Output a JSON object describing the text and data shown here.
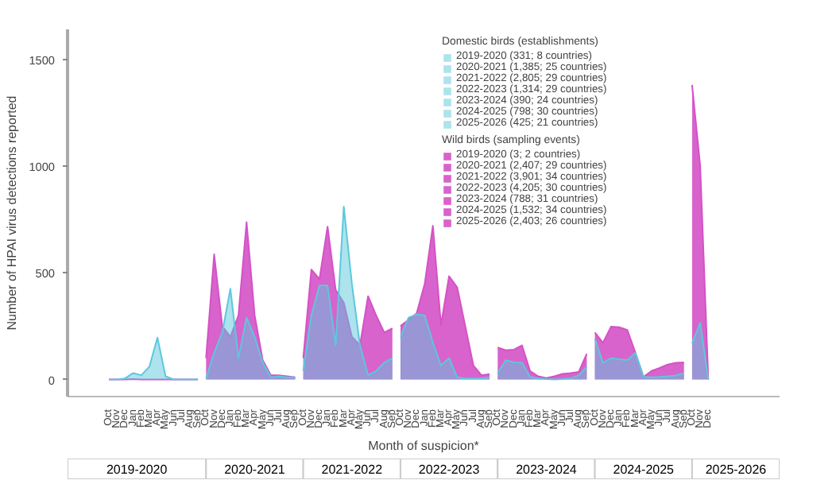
{
  "chart_data": {
    "type": "area",
    "xlabel": "Month of suspicion*",
    "ylabel": "Number of HPAI virus detections reported",
    "legend_title": "Domestic birds (establishments)",
    "legend": "top",
    "annotations": [
      "Wild birds (sampling events)",
      "2019-2020",
      "2020-2021",
      "2021-2022",
      "2022-2023",
      "2023-2024",
      "2024-2025",
      "2025-2026"
    ],
    "categories": [
      "Oct",
      "Nov",
      "Dec",
      "Jan",
      "Feb",
      "Mar",
      "Apr",
      "May",
      "Jun",
      "Jul",
      "Aug",
      "Sep",
      "Oct",
      "Nov",
      "Dec",
      "Jan",
      "Feb",
      "Mar",
      "Apr",
      "May",
      "Jun",
      "Jul",
      "Aug",
      "Sep",
      "Oct",
      "Nov",
      "Dec",
      "Jan",
      "Feb",
      "Mar",
      "Apr",
      "May",
      "Jun",
      "Jul",
      "Aug",
      "Sep",
      "Oct",
      "Nov",
      "Dec",
      "Jan",
      "Feb",
      "Mar",
      "Apr",
      "May",
      "Jun",
      "Jul",
      "Aug",
      "Sep",
      "Oct",
      "Nov",
      "Dec",
      "Jan",
      "Feb",
      "Mar",
      "Apr",
      "May",
      "Jun",
      "Jul",
      "Aug",
      "Sep",
      "Oct",
      "Nov",
      "Dec",
      "Jan",
      "Feb",
      "Mar",
      "Apr",
      "May",
      "Jun",
      "Jul",
      "Aug",
      "Sep",
      "Oct",
      "Nov",
      "Dec"
    ],
    "ylim": [
      -80,
      1640
    ],
    "yticks": [
      0,
      500,
      1000,
      1500
    ],
    "series": [
      {
        "name": "2019-2020 (331; 8 countries)",
        "color": "#5cc8dc",
        "values": [
          0,
          0,
          5,
          30,
          20,
          60,
          196,
          15,
          0,
          0,
          0,
          0,
          null,
          null,
          null,
          null,
          null,
          null,
          null,
          null,
          null,
          null,
          null,
          null,
          null,
          null,
          null,
          null,
          null,
          null,
          null,
          null,
          null,
          null,
          null,
          null,
          null,
          null,
          null,
          null,
          null,
          null,
          null,
          null,
          null,
          null,
          null,
          null,
          null,
          null,
          null,
          null,
          null,
          null,
          null,
          null,
          null,
          null,
          null,
          null,
          null,
          null,
          null,
          null,
          null,
          null,
          null,
          null,
          null,
          null,
          null,
          null,
          null,
          null,
          null
        ]
      },
      {
        "name": "2020-2021 (1,385; 25 countries)",
        "color": "#5cc8dc",
        "values": [
          null,
          null,
          null,
          null,
          null,
          null,
          null,
          null,
          null,
          null,
          null,
          null,
          5,
          125,
          220,
          425,
          100,
          290,
          200,
          80,
          10,
          15,
          10,
          10,
          null,
          null,
          null,
          null,
          null,
          null,
          null,
          null,
          null,
          null,
          null,
          null,
          null,
          null,
          null,
          null,
          null,
          null,
          null,
          null,
          null,
          null,
          null,
          null,
          null,
          null,
          null,
          null,
          null,
          null,
          null,
          null,
          null,
          null,
          null,
          null,
          null,
          null,
          null,
          null,
          null,
          null,
          null,
          null,
          null,
          null,
          null,
          null,
          null,
          null,
          null
        ]
      },
      {
        "name": "2021-2022 (2,805; 29 countries)",
        "color": "#5cc8dc",
        "values": [
          null,
          null,
          null,
          null,
          null,
          null,
          null,
          null,
          null,
          null,
          null,
          null,
          null,
          null,
          null,
          null,
          null,
          null,
          null,
          null,
          null,
          null,
          null,
          null,
          40,
          300,
          440,
          440,
          160,
          810,
          450,
          160,
          20,
          40,
          80,
          100,
          null,
          null,
          null,
          null,
          null,
          null,
          null,
          null,
          null,
          null,
          null,
          null,
          null,
          null,
          null,
          null,
          null,
          null,
          null,
          null,
          null,
          null,
          null,
          null,
          null,
          null,
          null,
          null,
          null,
          null,
          null,
          null,
          null,
          null,
          null,
          null,
          null,
          null,
          null
        ]
      },
      {
        "name": "2022-2023 (1,314; 29 countries)",
        "color": "#5cc8dc",
        "values": [
          null,
          null,
          null,
          null,
          null,
          null,
          null,
          null,
          null,
          null,
          null,
          null,
          null,
          null,
          null,
          null,
          null,
          null,
          null,
          null,
          null,
          null,
          null,
          null,
          null,
          null,
          null,
          null,
          null,
          null,
          null,
          null,
          null,
          null,
          null,
          null,
          200,
          290,
          305,
          300,
          172,
          66,
          100,
          10,
          5,
          5,
          5,
          10,
          null,
          null,
          null,
          null,
          null,
          null,
          null,
          null,
          null,
          null,
          null,
          null,
          null,
          null,
          null,
          null,
          null,
          null,
          null,
          null,
          null,
          null,
          null,
          null,
          null,
          null,
          null
        ]
      },
      {
        "name": "2023-2024 (390; 24 countries)",
        "color": "#5cc8dc",
        "values": [
          null,
          null,
          null,
          null,
          null,
          null,
          null,
          null,
          null,
          null,
          null,
          null,
          null,
          null,
          null,
          null,
          null,
          null,
          null,
          null,
          null,
          null,
          null,
          null,
          null,
          null,
          null,
          null,
          null,
          null,
          null,
          null,
          null,
          null,
          null,
          null,
          null,
          null,
          null,
          null,
          null,
          null,
          null,
          null,
          null,
          null,
          null,
          null,
          30,
          90,
          80,
          78,
          12,
          5,
          2,
          0,
          2,
          5,
          19,
          60,
          null,
          null,
          null,
          null,
          null,
          null,
          null,
          null,
          null,
          null,
          null,
          null,
          null,
          null,
          null
        ]
      },
      {
        "name": "2024-2025 (798; 30 countries)",
        "color": "#5cc8dc",
        "values": [
          null,
          null,
          null,
          null,
          null,
          null,
          null,
          null,
          null,
          null,
          null,
          null,
          null,
          null,
          null,
          null,
          null,
          null,
          null,
          null,
          null,
          null,
          null,
          null,
          null,
          null,
          null,
          null,
          null,
          null,
          null,
          null,
          null,
          null,
          null,
          null,
          null,
          null,
          null,
          null,
          null,
          null,
          null,
          null,
          null,
          null,
          null,
          null,
          null,
          null,
          null,
          null,
          null,
          null,
          null,
          null,
          null,
          null,
          null,
          null,
          190,
          78,
          100,
          95,
          90,
          125,
          12,
          10,
          12,
          15,
          19,
          30,
          null,
          null,
          null
        ]
      },
      {
        "name": "2025-2026 (425; 21 countries)",
        "color": "#5cc8dc",
        "values": [
          null,
          null,
          null,
          null,
          null,
          null,
          null,
          null,
          null,
          null,
          null,
          null,
          null,
          null,
          null,
          null,
          null,
          null,
          null,
          null,
          null,
          null,
          null,
          null,
          null,
          null,
          null,
          null,
          null,
          null,
          null,
          null,
          null,
          null,
          null,
          null,
          null,
          null,
          null,
          null,
          null,
          null,
          null,
          null,
          null,
          null,
          null,
          null,
          null,
          null,
          null,
          null,
          null,
          null,
          null,
          null,
          null,
          null,
          null,
          null,
          null,
          null,
          null,
          null,
          null,
          null,
          null,
          null,
          null,
          null,
          null,
          null,
          170,
          265,
          0
        ]
      },
      {
        "name": "2019-2020 (3; 2 countries)",
        "color": "#d452c6",
        "values": [
          0,
          0,
          0,
          2,
          0,
          0,
          0,
          0,
          0,
          0,
          0,
          0,
          null,
          null,
          null,
          null,
          null,
          null,
          null,
          null,
          null,
          null,
          null,
          null,
          null,
          null,
          null,
          null,
          null,
          null,
          null,
          null,
          null,
          null,
          null,
          null,
          null,
          null,
          null,
          null,
          null,
          null,
          null,
          null,
          null,
          null,
          null,
          null,
          null,
          null,
          null,
          null,
          null,
          null,
          null,
          null,
          null,
          null,
          null,
          null,
          null,
          null,
          null,
          null,
          null,
          null,
          null,
          null,
          null,
          null,
          null,
          null,
          null,
          null,
          null
        ]
      },
      {
        "name": "2020-2021 (2,407; 29 countries)",
        "color": "#d452c6",
        "values": [
          null,
          null,
          null,
          null,
          null,
          null,
          null,
          null,
          null,
          null,
          null,
          null,
          100,
          586,
          250,
          200,
          300,
          737,
          300,
          90,
          20,
          20,
          15,
          10,
          null,
          null,
          null,
          null,
          null,
          null,
          null,
          null,
          null,
          null,
          null,
          null,
          null,
          null,
          null,
          null,
          null,
          null,
          null,
          null,
          null,
          null,
          null,
          null,
          null,
          null,
          null,
          null,
          null,
          null,
          null,
          null,
          null,
          null,
          null,
          null,
          null,
          null,
          null,
          null,
          null,
          null,
          null,
          null,
          null,
          null,
          null,
          null,
          null,
          null,
          null
        ]
      },
      {
        "name": "2021-2022 (3,901; 34 countries)",
        "color": "#d452c6",
        "values": [
          null,
          null,
          null,
          null,
          null,
          null,
          null,
          null,
          null,
          null,
          null,
          null,
          null,
          null,
          null,
          null,
          null,
          null,
          null,
          null,
          null,
          null,
          null,
          null,
          100,
          515,
          470,
          716,
          420,
          360,
          200,
          160,
          390,
          300,
          220,
          240,
          null,
          null,
          null,
          null,
          null,
          null,
          null,
          null,
          null,
          null,
          null,
          null,
          null,
          null,
          null,
          null,
          null,
          null,
          null,
          null,
          null,
          null,
          null,
          null,
          null,
          null,
          null,
          null,
          null,
          null,
          null,
          null,
          null,
          null,
          null,
          null,
          null,
          null,
          null
        ]
      },
      {
        "name": "2022-2023 (4,205; 30 countries)",
        "color": "#d452c6",
        "values": [
          null,
          null,
          null,
          null,
          null,
          null,
          null,
          null,
          null,
          null,
          null,
          null,
          null,
          null,
          null,
          null,
          null,
          null,
          null,
          null,
          null,
          null,
          null,
          null,
          null,
          null,
          null,
          null,
          null,
          null,
          null,
          null,
          null,
          null,
          null,
          null,
          250,
          280,
          310,
          450,
          720,
          255,
          484,
          432,
          250,
          66,
          20,
          25,
          null,
          null,
          null,
          null,
          null,
          null,
          null,
          null,
          null,
          null,
          null,
          null,
          null,
          null,
          null,
          null,
          null,
          null,
          null,
          null,
          null,
          null,
          null,
          null,
          null,
          null,
          null
        ]
      },
      {
        "name": "2023-2024 (788; 31 countries)",
        "color": "#d452c6",
        "values": [
          null,
          null,
          null,
          null,
          null,
          null,
          null,
          null,
          null,
          null,
          null,
          null,
          null,
          null,
          null,
          null,
          null,
          null,
          null,
          null,
          null,
          null,
          null,
          null,
          null,
          null,
          null,
          null,
          null,
          null,
          null,
          null,
          null,
          null,
          null,
          null,
          null,
          null,
          null,
          null,
          null,
          null,
          null,
          null,
          null,
          null,
          null,
          null,
          150,
          137,
          140,
          160,
          40,
          15,
          7,
          15,
          26,
          30,
          35,
          120,
          null,
          null,
          null,
          null,
          null,
          null,
          null,
          null,
          null,
          null,
          null,
          null,
          null,
          null,
          null
        ]
      },
      {
        "name": "2024-2025 (1,532; 34 countries)",
        "color": "#d452c6",
        "values": [
          null,
          null,
          null,
          null,
          null,
          null,
          null,
          null,
          null,
          null,
          null,
          null,
          null,
          null,
          null,
          null,
          null,
          null,
          null,
          null,
          null,
          null,
          null,
          null,
          null,
          null,
          null,
          null,
          null,
          null,
          null,
          null,
          null,
          null,
          null,
          null,
          null,
          null,
          null,
          null,
          null,
          null,
          null,
          null,
          null,
          null,
          null,
          null,
          null,
          null,
          null,
          null,
          null,
          null,
          null,
          null,
          null,
          null,
          null,
          null,
          220,
          172,
          248,
          245,
          232,
          125,
          12,
          40,
          54,
          70,
          78,
          80,
          null,
          null,
          null
        ]
      },
      {
        "name": "2025-2026 (2,403; 26 countries)",
        "color": "#d452c6",
        "values": [
          null,
          null,
          null,
          null,
          null,
          null,
          null,
          null,
          null,
          null,
          null,
          null,
          null,
          null,
          null,
          null,
          null,
          null,
          null,
          null,
          null,
          null,
          null,
          null,
          null,
          null,
          null,
          null,
          null,
          null,
          null,
          null,
          null,
          null,
          null,
          null,
          null,
          null,
          null,
          null,
          null,
          null,
          null,
          null,
          null,
          null,
          null,
          null,
          null,
          null,
          null,
          null,
          null,
          null,
          null,
          null,
          null,
          null,
          null,
          null,
          null,
          null,
          null,
          null,
          null,
          null,
          null,
          null,
          null,
          null,
          null,
          null,
          1380,
          1000,
          0
        ]
      }
    ]
  }
}
